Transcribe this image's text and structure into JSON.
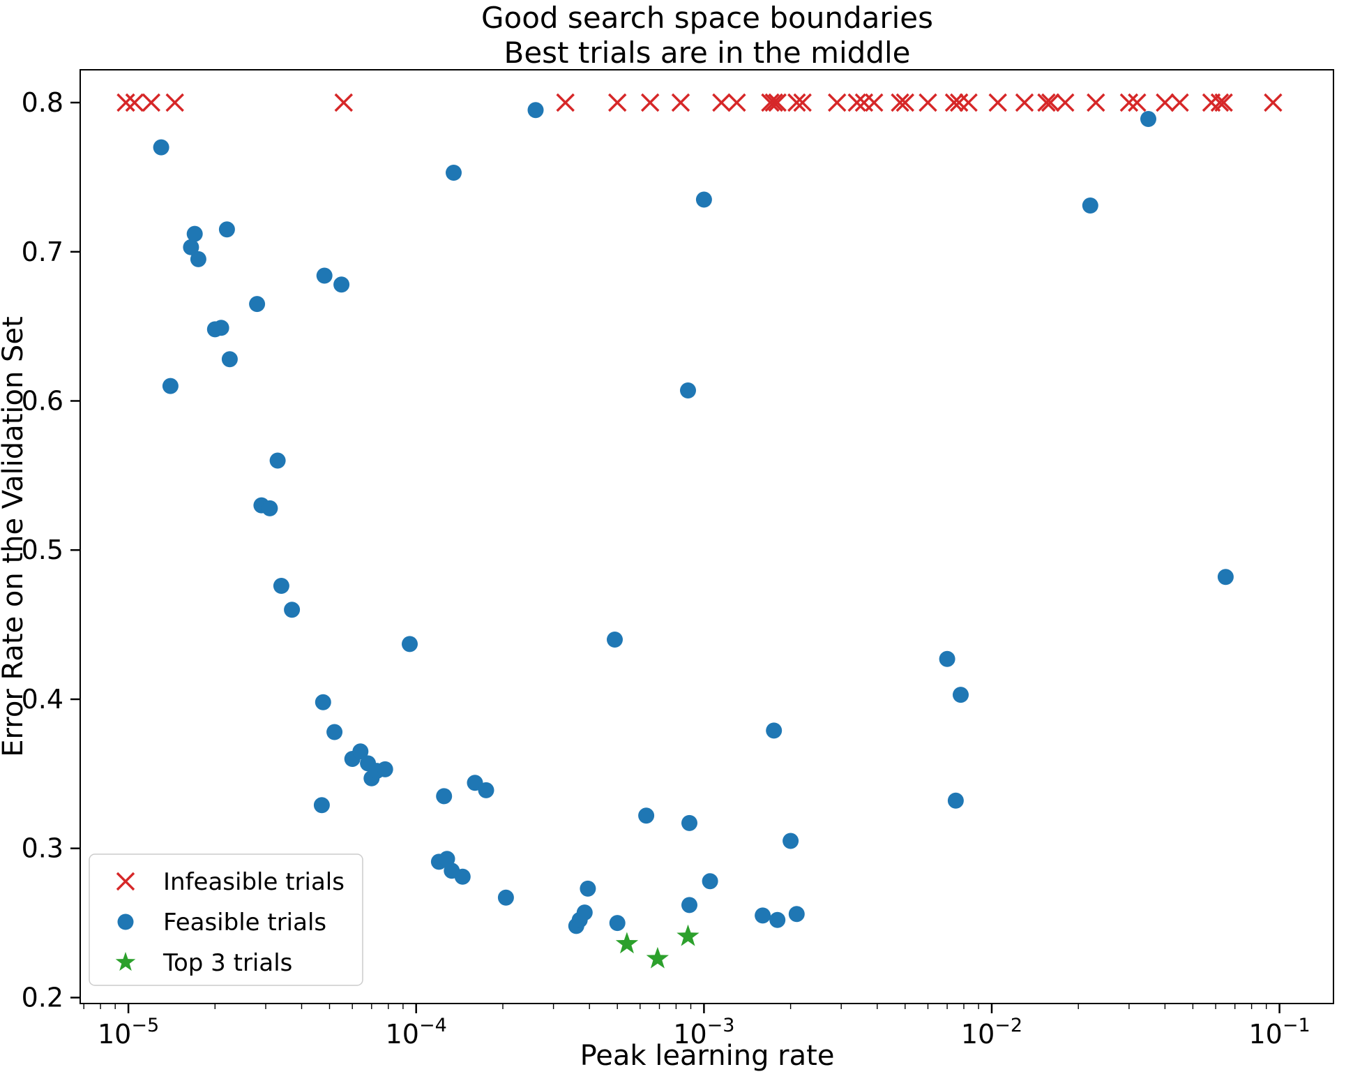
{
  "figure": {
    "background": "#ffffff",
    "text_color": "#000000",
    "spine_color": "#000000",
    "legend_edge_color": "#cccccc",
    "legend_fill_color": "#ffffff"
  },
  "chart_data": {
    "type": "scatter",
    "title_lines": [
      "Good search space boundaries",
      "Best trials are in the middle"
    ],
    "xlabel": "Peak learning rate",
    "ylabel": "Error Rate on the Validation Set",
    "x_scale": "log",
    "y_scale": "linear",
    "xlim": [
      6.8e-06,
      0.154
    ],
    "ylim": [
      0.196,
      0.822
    ],
    "grid": false,
    "x_ticks": [
      {
        "value": 1e-05,
        "base": "10",
        "exp": "−5"
      },
      {
        "value": 0.0001,
        "base": "10",
        "exp": "−4"
      },
      {
        "value": 0.001,
        "base": "10",
        "exp": "−3"
      },
      {
        "value": 0.01,
        "base": "10",
        "exp": "−2"
      },
      {
        "value": 0.1,
        "base": "10",
        "exp": "−1"
      }
    ],
    "y_ticks": [
      {
        "value": 0.2,
        "label": "0.2"
      },
      {
        "value": 0.3,
        "label": "0.3"
      },
      {
        "value": 0.4,
        "label": "0.4"
      },
      {
        "value": 0.5,
        "label": "0.5"
      },
      {
        "value": 0.6,
        "label": "0.6"
      },
      {
        "value": 0.7,
        "label": "0.7"
      },
      {
        "value": 0.8,
        "label": "0.8"
      }
    ],
    "legend": {
      "location": "lower-left",
      "labels": [
        "Infeasible trials",
        "Feasible trials",
        "Top 3 trials"
      ]
    },
    "series": [
      {
        "name": "Infeasible trials",
        "marker": "x",
        "color": "#d62728",
        "points": [
          [
            9.8e-06,
            0.8
          ],
          [
            1.05e-05,
            0.8
          ],
          [
            1.2e-05,
            0.8
          ],
          [
            1.45e-05,
            0.8
          ],
          [
            5.6e-05,
            0.8
          ],
          [
            0.00033,
            0.8
          ],
          [
            0.0005,
            0.8
          ],
          [
            0.00065,
            0.8
          ],
          [
            0.00083,
            0.8
          ],
          [
            0.00115,
            0.8
          ],
          [
            0.0013,
            0.8
          ],
          [
            0.0017,
            0.8
          ],
          [
            0.00175,
            0.8
          ],
          [
            0.0018,
            0.8
          ],
          [
            0.0021,
            0.8
          ],
          [
            0.0022,
            0.8
          ],
          [
            0.0029,
            0.8
          ],
          [
            0.0034,
            0.8
          ],
          [
            0.0036,
            0.8
          ],
          [
            0.0039,
            0.8
          ],
          [
            0.0048,
            0.8
          ],
          [
            0.005,
            0.8
          ],
          [
            0.006,
            0.8
          ],
          [
            0.0074,
            0.8
          ],
          [
            0.0077,
            0.8
          ],
          [
            0.0083,
            0.8
          ],
          [
            0.0105,
            0.8
          ],
          [
            0.013,
            0.8
          ],
          [
            0.0155,
            0.8
          ],
          [
            0.016,
            0.8
          ],
          [
            0.018,
            0.8
          ],
          [
            0.023,
            0.8
          ],
          [
            0.03,
            0.8
          ],
          [
            0.032,
            0.8
          ],
          [
            0.04,
            0.8
          ],
          [
            0.045,
            0.8
          ],
          [
            0.058,
            0.8
          ],
          [
            0.062,
            0.8
          ],
          [
            0.064,
            0.8
          ],
          [
            0.095,
            0.8
          ]
        ]
      },
      {
        "name": "Feasible trials",
        "marker": "circle",
        "color": "#1f77b4",
        "points": [
          [
            1.3e-05,
            0.77
          ],
          [
            1.4e-05,
            0.61
          ],
          [
            1.65e-05,
            0.703
          ],
          [
            1.7e-05,
            0.712
          ],
          [
            1.75e-05,
            0.695
          ],
          [
            2e-05,
            0.648
          ],
          [
            2.1e-05,
            0.649
          ],
          [
            2.2e-05,
            0.715
          ],
          [
            2.25e-05,
            0.628
          ],
          [
            2.8e-05,
            0.665
          ],
          [
            2.9e-05,
            0.53
          ],
          [
            3.1e-05,
            0.528
          ],
          [
            3.3e-05,
            0.56
          ],
          [
            3.4e-05,
            0.476
          ],
          [
            3.7e-05,
            0.46
          ],
          [
            4.8e-05,
            0.684
          ],
          [
            5.5e-05,
            0.678
          ],
          [
            4.75e-05,
            0.398
          ],
          [
            4.7e-05,
            0.329
          ],
          [
            5.2e-05,
            0.378
          ],
          [
            6e-05,
            0.36
          ],
          [
            6.4e-05,
            0.365
          ],
          [
            6.8e-05,
            0.357
          ],
          [
            7e-05,
            0.347
          ],
          [
            7.3e-05,
            0.352
          ],
          [
            7.8e-05,
            0.353
          ],
          [
            9.5e-05,
            0.437
          ],
          [
            0.00012,
            0.291
          ],
          [
            0.000125,
            0.335
          ],
          [
            0.000128,
            0.293
          ],
          [
            0.000133,
            0.285
          ],
          [
            0.000145,
            0.281
          ],
          [
            0.00016,
            0.344
          ],
          [
            0.000175,
            0.339
          ],
          [
            0.000135,
            0.753
          ],
          [
            0.000205,
            0.267
          ],
          [
            0.00026,
            0.795
          ],
          [
            0.00036,
            0.248
          ],
          [
            0.00037,
            0.252
          ],
          [
            0.000385,
            0.257
          ],
          [
            0.000395,
            0.273
          ],
          [
            0.00049,
            0.44
          ],
          [
            0.0005,
            0.25
          ],
          [
            0.00063,
            0.322
          ],
          [
            0.001,
            0.735
          ],
          [
            0.00105,
            0.278
          ],
          [
            0.0016,
            0.255
          ],
          [
            0.0018,
            0.252
          ],
          [
            0.0021,
            0.256
          ],
          [
            0.00175,
            0.379
          ],
          [
            0.002,
            0.305
          ],
          [
            0.00088,
            0.607
          ],
          [
            0.00089,
            0.317
          ],
          [
            0.00089,
            0.262
          ],
          [
            0.007,
            0.427
          ],
          [
            0.0078,
            0.403
          ],
          [
            0.0075,
            0.332
          ],
          [
            0.022,
            0.731
          ],
          [
            0.035,
            0.789
          ],
          [
            0.065,
            0.482
          ]
        ]
      },
      {
        "name": "Top 3 trials",
        "marker": "star",
        "color": "#2ca02c",
        "points": [
          [
            0.00054,
            0.236
          ],
          [
            0.00069,
            0.226
          ],
          [
            0.00088,
            0.241
          ]
        ]
      }
    ]
  }
}
